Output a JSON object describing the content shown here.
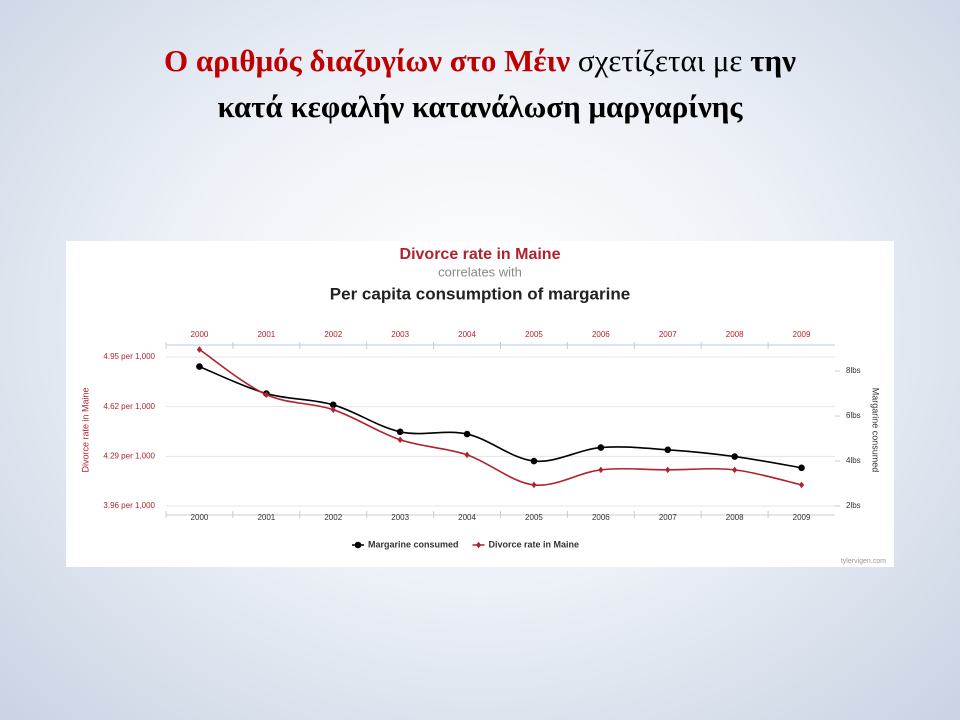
{
  "slide_title": [
    "Ο αριθμός διαζυγίων στο Μέιν",
    "σχετίζεται με",
    "την",
    "κατά κεφαλήν κατανάλωση μαργαρίνης"
  ],
  "chart_data": {
    "type": "line",
    "title": "Divorce rate in Maine",
    "subtitle": "correlates with",
    "title2": "Per capita consumption of margarine",
    "y_label": "Divorce rate in Maine",
    "y2_label": "Margarine consumed",
    "credit": "tylervigen.com",
    "categories": [
      "2000",
      "2001",
      "2002",
      "2003",
      "2004",
      "2005",
      "2006",
      "2007",
      "2008",
      "2009"
    ],
    "series": [
      {
        "name": "Margarine consumed",
        "color": "#000000",
        "axis": "y2",
        "values": [
          8.2,
          7.0,
          6.5,
          5.3,
          5.2,
          4.0,
          4.6,
          4.5,
          4.2,
          3.7
        ]
      },
      {
        "name": "Divorce rate in Maine",
        "color": "#b0222f",
        "values": [
          5.0,
          4.7,
          4.6,
          4.4,
          4.3,
          4.1,
          4.2,
          4.2,
          4.2,
          4.1
        ]
      }
    ],
    "ylim": [
      3.9,
      5.03
    ],
    "yticks": [
      {
        "value": 3.96,
        "label": "3.96 per 1,000"
      },
      {
        "value": 4.29,
        "label": "4.29 per 1,000"
      },
      {
        "value": 4.62,
        "label": "4.62 per 1,000"
      },
      {
        "value": 4.95,
        "label": "4.95 per 1,000"
      }
    ],
    "y2lim": [
      1.6,
      9.16
    ],
    "y2ticks": [
      {
        "value": 2,
        "label": "2lbs"
      },
      {
        "value": 4,
        "label": "4lbs"
      },
      {
        "value": 6,
        "label": "6lbs"
      },
      {
        "value": 8,
        "label": "8lbs"
      }
    ],
    "grid": true
  }
}
